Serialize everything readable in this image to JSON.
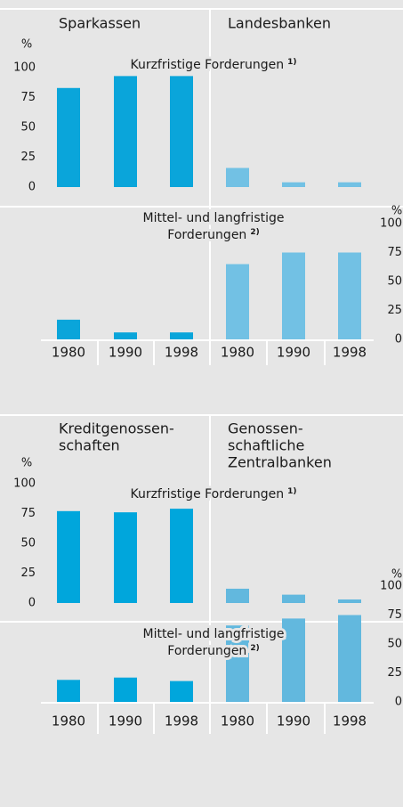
{
  "chart_data": [
    {
      "type": "bar",
      "columns": [
        [
          "Sparkassen"
        ],
        [
          "Landesbanken"
        ]
      ],
      "categories": [
        "1980",
        "1990",
        "1998"
      ],
      "colors": [
        "#0aa5da",
        "#72c1e4"
      ],
      "rows": [
        {
          "title": [
            "Kurzfristige Forderungen"
          ],
          "footnote": "1)",
          "axis_label": "%",
          "axis_side": "left",
          "ylim": [
            0,
            100
          ],
          "yticks": [
            0,
            25,
            50,
            75,
            100
          ],
          "values": [
            [
              83,
              93,
              93
            ],
            [
              16,
              4,
              4
            ]
          ]
        },
        {
          "title": [
            "Mittel- und langfristige",
            "Forderungen"
          ],
          "footnote": "2)",
          "axis_label": "%",
          "axis_side": "right",
          "ylim": [
            0,
            100
          ],
          "yticks": [
            0,
            25,
            50,
            75,
            100
          ],
          "values": [
            [
              17,
              6,
              6
            ],
            [
              65,
              75,
              75
            ]
          ]
        }
      ]
    },
    {
      "type": "bar",
      "columns": [
        [
          "Kreditgenossen-",
          "schaften"
        ],
        [
          "Genossen-",
          "schaftliche",
          "Zentralbanken"
        ]
      ],
      "categories": [
        "1980",
        "1990",
        "1998"
      ],
      "colors": [
        "#00a6dc",
        "#62b8de"
      ],
      "rows": [
        {
          "title": [
            "Kurzfristige Forderungen"
          ],
          "footnote": "1)",
          "axis_label": "%",
          "axis_side": "left",
          "ylim": [
            0,
            100
          ],
          "yticks": [
            0,
            25,
            50,
            75,
            100
          ],
          "values": [
            [
              77,
              76,
              79
            ],
            [
              12,
              7,
              3
            ]
          ]
        },
        {
          "title": [
            "Mittel- und langfristige",
            "Forderungen"
          ],
          "footnote": "2)",
          "axis_label": "%",
          "axis_side": "right",
          "ylim": [
            0,
            100
          ],
          "yticks": [
            0,
            25,
            50,
            75,
            100
          ],
          "values": [
            [
              19,
              21,
              18
            ],
            [
              66,
              72,
              75
            ]
          ]
        }
      ]
    }
  ]
}
